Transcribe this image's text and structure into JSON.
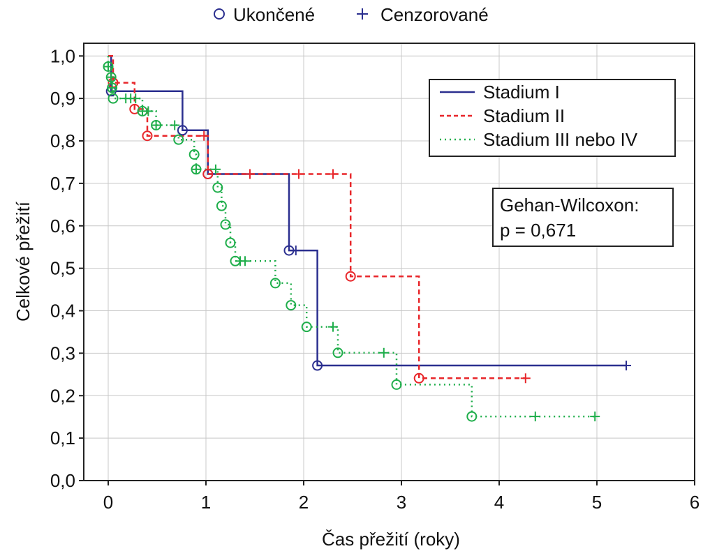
{
  "chart_data": {
    "type": "line",
    "subtype": "kaplan-meier",
    "top_legend": {
      "event_label": "Ukončené",
      "censored_label": "Cenzorované",
      "color": "#2b2f8f"
    },
    "xlabel": "Čas přežití (roky)",
    "ylabel": "Celkové přežití",
    "xlim": [
      -0.25,
      6
    ],
    "ylim": [
      0,
      1.03
    ],
    "xticks": [
      "0",
      "1",
      "2",
      "3",
      "4",
      "5",
      "6"
    ],
    "yticks": [
      "0,0",
      "0,1",
      "0,2",
      "0,3",
      "0,4",
      "0,5",
      "0,6",
      "0,7",
      "0,8",
      "0,9",
      "1,0"
    ],
    "grid": true,
    "legend_position": "top-right",
    "annotation": {
      "line1": "Gehan-Wilcoxon:",
      "line2": "p = 0,671"
    },
    "series": [
      {
        "name": "Stadium I",
        "color": "#2b2f8f",
        "style": "solid",
        "steps": [
          [
            0,
            1.0
          ],
          [
            0.03,
            0.917
          ],
          [
            0.76,
            0.825
          ],
          [
            1.02,
            0.722
          ],
          [
            1.85,
            0.542
          ],
          [
            2.14,
            0.271
          ],
          [
            5.3,
            0.271
          ]
        ],
        "events": [
          [
            0.03,
            0.917
          ],
          [
            0.76,
            0.825
          ],
          [
            1.02,
            0.722
          ],
          [
            1.85,
            0.542
          ],
          [
            2.14,
            0.271
          ]
        ],
        "censored": [
          [
            1.92,
            0.542
          ],
          [
            5.3,
            0.271
          ]
        ]
      },
      {
        "name": "Stadium II",
        "color": "#e8262a",
        "style": "dashed",
        "steps": [
          [
            0,
            1.0
          ],
          [
            0.05,
            0.937
          ],
          [
            0.27,
            0.875
          ],
          [
            0.4,
            0.812
          ],
          [
            1.02,
            0.722
          ],
          [
            2.48,
            0.481
          ],
          [
            3.18,
            0.241
          ],
          [
            4.27,
            0.241
          ]
        ],
        "events": [
          [
            0.05,
            0.937
          ],
          [
            0.27,
            0.875
          ],
          [
            0.4,
            0.812
          ],
          [
            1.02,
            0.722
          ],
          [
            2.48,
            0.481
          ],
          [
            3.18,
            0.241
          ]
        ],
        "censored": [
          [
            0.98,
            0.812
          ],
          [
            1.45,
            0.722
          ],
          [
            1.95,
            0.722
          ],
          [
            2.3,
            0.722
          ],
          [
            4.27,
            0.241
          ]
        ]
      },
      {
        "name": "Stadium III nebo IV",
        "color": "#1fae4b",
        "style": "dotted",
        "steps": [
          [
            0,
            1.0
          ],
          [
            0.0,
            0.975
          ],
          [
            0.03,
            0.95
          ],
          [
            0.04,
            0.925
          ],
          [
            0.05,
            0.9
          ],
          [
            0.35,
            0.87
          ],
          [
            0.49,
            0.837
          ],
          [
            0.72,
            0.803
          ],
          [
            0.88,
            0.768
          ],
          [
            0.9,
            0.733
          ],
          [
            1.12,
            0.69
          ],
          [
            1.16,
            0.647
          ],
          [
            1.2,
            0.603
          ],
          [
            1.25,
            0.56
          ],
          [
            1.3,
            0.517
          ],
          [
            1.71,
            0.465
          ],
          [
            1.87,
            0.413
          ],
          [
            2.03,
            0.362
          ],
          [
            2.35,
            0.301
          ],
          [
            2.95,
            0.226
          ],
          [
            3.72,
            0.151
          ],
          [
            4.98,
            0.151
          ]
        ],
        "events": [
          [
            0.0,
            0.975
          ],
          [
            0.03,
            0.95
          ],
          [
            0.04,
            0.925
          ],
          [
            0.05,
            0.9
          ],
          [
            0.35,
            0.87
          ],
          [
            0.49,
            0.837
          ],
          [
            0.72,
            0.803
          ],
          [
            0.88,
            0.768
          ],
          [
            0.9,
            0.733
          ],
          [
            1.12,
            0.69
          ],
          [
            1.16,
            0.647
          ],
          [
            1.2,
            0.603
          ],
          [
            1.25,
            0.56
          ],
          [
            1.3,
            0.517
          ],
          [
            1.71,
            0.465
          ],
          [
            1.87,
            0.413
          ],
          [
            2.03,
            0.362
          ],
          [
            2.35,
            0.301
          ],
          [
            2.95,
            0.226
          ],
          [
            3.72,
            0.151
          ]
        ],
        "censored": [
          [
            0.0,
            0.975
          ],
          [
            0.03,
            0.95
          ],
          [
            0.04,
            0.925
          ],
          [
            0.18,
            0.9
          ],
          [
            0.23,
            0.9
          ],
          [
            0.28,
            0.9
          ],
          [
            0.35,
            0.87
          ],
          [
            0.41,
            0.87
          ],
          [
            0.49,
            0.837
          ],
          [
            0.68,
            0.837
          ],
          [
            0.9,
            0.733
          ],
          [
            1.1,
            0.733
          ],
          [
            1.35,
            0.517
          ],
          [
            1.4,
            0.517
          ],
          [
            2.3,
            0.362
          ],
          [
            2.82,
            0.301
          ],
          [
            4.37,
            0.151
          ],
          [
            4.98,
            0.151
          ]
        ]
      }
    ]
  }
}
